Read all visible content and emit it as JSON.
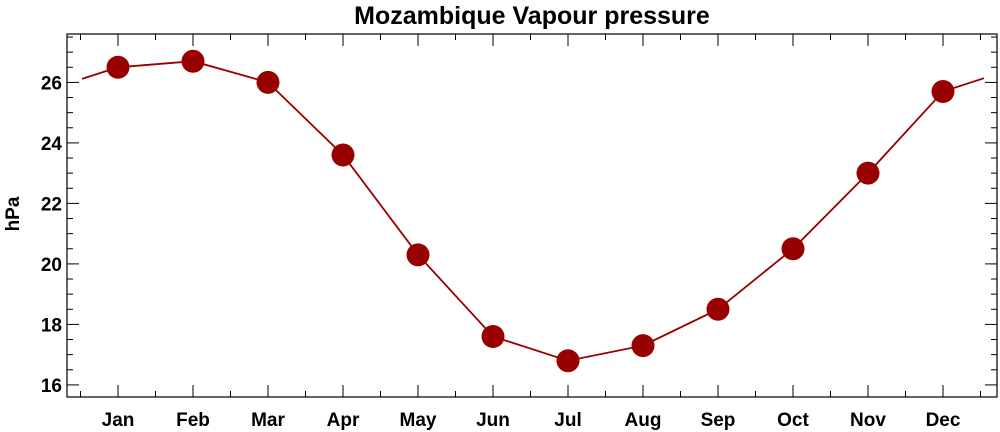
{
  "chart_data": {
    "type": "line",
    "title": "Mozambique Vapour pressure",
    "xlabel": "",
    "ylabel": "hPa",
    "categories": [
      "Jan",
      "Feb",
      "Mar",
      "Apr",
      "May",
      "Jun",
      "Jul",
      "Aug",
      "Sep",
      "Oct",
      "Nov",
      "Dec"
    ],
    "series": [
      {
        "values": [
          26.5,
          26.7,
          26.0,
          23.6,
          20.3,
          17.6,
          16.8,
          17.3,
          18.5,
          20.5,
          23.0,
          25.7
        ]
      }
    ],
    "ylim": [
      15.6,
      27.6
    ],
    "yticks": [
      16,
      18,
      20,
      22,
      24,
      26
    ],
    "grid": false,
    "legend": "none",
    "line_color": "#990000",
    "marker_color": "#990000"
  }
}
